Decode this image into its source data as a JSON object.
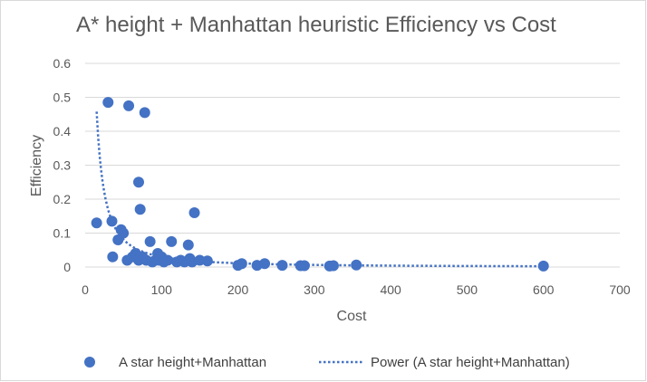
{
  "chart_data": {
    "type": "scatter",
    "title": "A* height + Manhattan heuristic Efficiency vs Cost",
    "xlabel": "Cost",
    "ylabel": "Efficiency",
    "xlim": [
      0,
      700
    ],
    "ylim": [
      0,
      0.6
    ],
    "xticks": [
      0,
      100,
      200,
      300,
      400,
      500,
      600,
      700
    ],
    "yticks": [
      0,
      0.1,
      0.2,
      0.3,
      0.4,
      0.5,
      0.6
    ],
    "xtick_labels": [
      "0",
      "100",
      "200",
      "300",
      "400",
      "500",
      "600",
      "700"
    ],
    "ytick_labels": [
      "0",
      "0.1",
      "0.2",
      "0.3",
      "0.4",
      "0.5",
      "0.6"
    ],
    "grid": "horizontal",
    "legend_position": "bottom",
    "series": [
      {
        "name": "A star height+Manhattan",
        "color": "#4472c4",
        "marker": "circle",
        "points": [
          [
            15,
            0.13
          ],
          [
            30,
            0.485
          ],
          [
            35,
            0.135
          ],
          [
            36,
            0.03
          ],
          [
            43,
            0.08
          ],
          [
            47,
            0.11
          ],
          [
            50,
            0.1
          ],
          [
            55,
            0.02
          ],
          [
            57,
            0.475
          ],
          [
            62,
            0.03
          ],
          [
            66,
            0.04
          ],
          [
            70,
            0.25
          ],
          [
            70,
            0.02
          ],
          [
            72,
            0.17
          ],
          [
            75,
            0.03
          ],
          [
            78,
            0.455
          ],
          [
            80,
            0.02
          ],
          [
            85,
            0.075
          ],
          [
            88,
            0.015
          ],
          [
            92,
            0.02
          ],
          [
            95,
            0.04
          ],
          [
            97,
            0.02
          ],
          [
            100,
            0.03
          ],
          [
            103,
            0.015
          ],
          [
            108,
            0.02
          ],
          [
            113,
            0.075
          ],
          [
            120,
            0.015
          ],
          [
            125,
            0.02
          ],
          [
            130,
            0.015
          ],
          [
            135,
            0.065
          ],
          [
            137,
            0.025
          ],
          [
            140,
            0.015
          ],
          [
            143,
            0.16
          ],
          [
            150,
            0.02
          ],
          [
            160,
            0.018
          ],
          [
            200,
            0.005
          ],
          [
            205,
            0.01
          ],
          [
            225,
            0.005
          ],
          [
            235,
            0.01
          ],
          [
            258,
            0.005
          ],
          [
            282,
            0.004
          ],
          [
            287,
            0.004
          ],
          [
            320,
            0.003
          ],
          [
            325,
            0.004
          ],
          [
            355,
            0.006
          ],
          [
            600,
            0.003
          ]
        ]
      },
      {
        "name": "Power (A star height+Manhattan)",
        "color": "#4472c4",
        "line_style": "dotted",
        "trendline": "power"
      }
    ]
  }
}
